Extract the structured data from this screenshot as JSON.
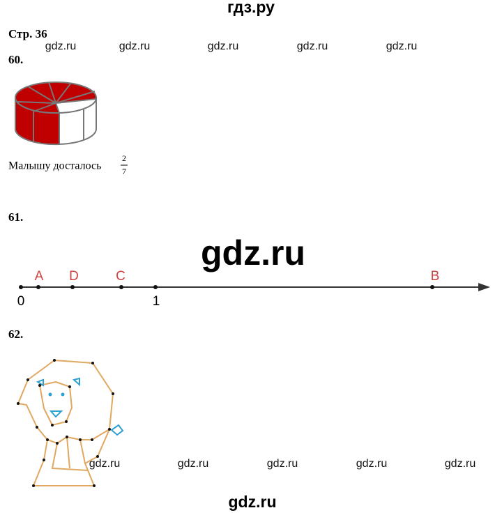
{
  "header": {
    "site": "гдз.ру",
    "page": "Стр. 36"
  },
  "watermarks_top": [
    "gdz.ru",
    "gdz.ru",
    "gdz.ru",
    "gdz.ru",
    "gdz.ru"
  ],
  "task60": {
    "number": "60.",
    "text": "Малышу досталось",
    "numerator": 2,
    "denominator": 7
  },
  "task61": {
    "number": "61.",
    "watermark": "gdz.ru",
    "ticks": [
      0,
      1
    ],
    "points": [
      "A",
      "D",
      "C",
      "B"
    ]
  },
  "task62": {
    "number": "62."
  },
  "watermarks_bottom": [
    "gdz.ru",
    "gdz.ru",
    "gdz.ru",
    "gdz.ru",
    "gdz.ru"
  ],
  "footer": {
    "watermark": "gdz.ru"
  }
}
